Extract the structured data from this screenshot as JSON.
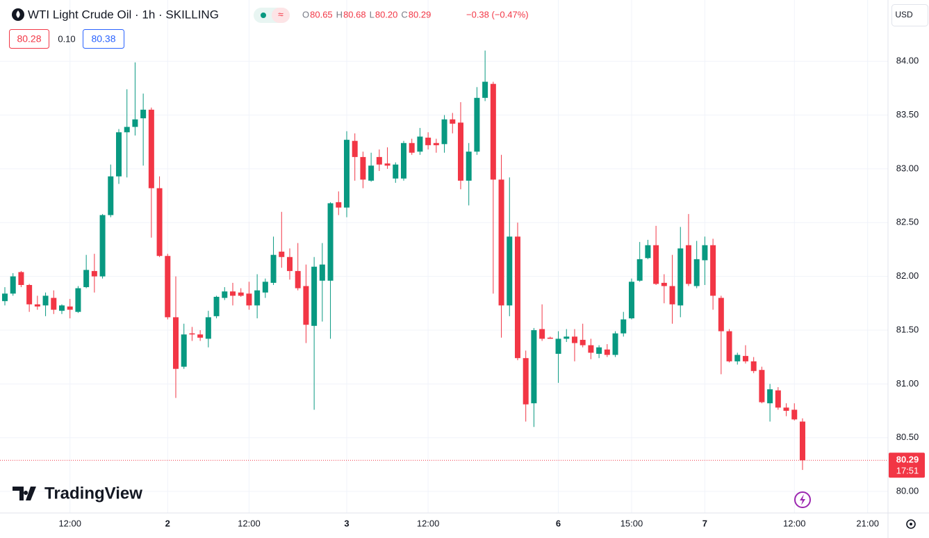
{
  "header": {
    "ohlc": [
      [
        "O",
        "80.65"
      ],
      [
        "H",
        "80.68"
      ],
      [
        "L",
        "80.20"
      ],
      [
        "C",
        "80.29"
      ]
    ],
    "change": "−0.38 (−0.47%)",
    "bid": "80.28",
    "spread": "0.10",
    "ask": "80.38",
    "currency": "USD",
    "logo": "TradingView"
  },
  "price_scale": {
    "last": "80.29",
    "countdown": "17:51"
  },
  "chart_data": {
    "type": "candlestick",
    "title": "WTI Light Crude Oil · 1h · SKILLING",
    "up_color": "#089981",
    "down_color": "#f23645",
    "grid": true,
    "categories": [
      null,
      null,
      null,
      null,
      null,
      null,
      null,
      null,
      "12:00",
      null,
      null,
      null,
      null,
      null,
      null,
      null,
      null,
      null,
      null,
      null,
      "2",
      null,
      null,
      null,
      null,
      null,
      null,
      null,
      null,
      null,
      "12:00",
      null,
      null,
      null,
      null,
      null,
      null,
      null,
      null,
      null,
      null,
      null,
      "3",
      null,
      null,
      null,
      null,
      null,
      null,
      null,
      null,
      null,
      "12:00",
      null,
      null,
      null,
      null,
      null,
      null,
      null,
      null,
      null,
      null,
      null,
      null,
      null,
      null,
      null,
      "6",
      null,
      null,
      null,
      null,
      null,
      null,
      null,
      null,
      "15:00",
      null,
      null,
      null,
      null,
      null,
      null,
      null,
      null,
      "7",
      null,
      null,
      null,
      null,
      null,
      null,
      null,
      null,
      null,
      null,
      "12:00",
      null,
      null,
      null,
      null,
      null,
      null,
      null,
      null,
      "21:00"
    ],
    "open": [
      81.77,
      81.84,
      82.04,
      81.92,
      81.74,
      81.73,
      81.8,
      81.68,
      81.72,
      81.67,
      81.9,
      82.05,
      82.0,
      82.57,
      82.93,
      83.34,
      83.39,
      83.47,
      83.55,
      82.82,
      82.19,
      81.62,
      81.16,
      81.47,
      81.46,
      81.42,
      81.63,
      81.8,
      81.86,
      81.85,
      81.84,
      81.73,
      81.85,
      81.94,
      82.23,
      82.18,
      82.05,
      81.91,
      81.54,
      81.96,
      81.96,
      82.69,
      82.64,
      83.26,
      83.11,
      82.89,
      83.11,
      83.05,
      82.91,
      82.91,
      83.24,
      83.16,
      83.29,
      83.24,
      83.23,
      83.46,
      83.43,
      82.89,
      83.16,
      83.66,
      83.79,
      82.9,
      81.73,
      82.37,
      81.24,
      80.82,
      81.51,
      81.43,
      81.28,
      81.42,
      81.44,
      81.41,
      81.36,
      81.28,
      81.32,
      81.27,
      81.47,
      81.61,
      81.96,
      82.17,
      82.29,
      81.94,
      81.91,
      81.73,
      82.29,
      81.91,
      82.15,
      82.29,
      81.8,
      81.49,
      81.21,
      81.26,
      81.21,
      81.13,
      80.82,
      80.94,
      80.78,
      80.76,
      80.65,
      null,
      null,
      null,
      null,
      null,
      null,
      null,
      null
    ],
    "high": [
      81.9,
      82.03,
      82.05,
      81.93,
      81.82,
      81.85,
      81.87,
      81.74,
      81.79,
      81.91,
      82.2,
      82.21,
      82.58,
      83.04,
      83.37,
      83.74,
      83.99,
      83.7,
      83.57,
      82.93,
      82.21,
      82.0,
      81.56,
      81.53,
      81.5,
      81.68,
      81.82,
      81.9,
      81.94,
      81.89,
      81.95,
      82.02,
      81.98,
      82.37,
      82.6,
      82.26,
      82.31,
      82.11,
      82.18,
      82.31,
      82.69,
      82.79,
      83.35,
      83.33,
      83.16,
      83.15,
      83.18,
      83.2,
      83.06,
      83.26,
      83.28,
      83.38,
      83.34,
      83.28,
      83.5,
      83.52,
      83.62,
      83.24,
      83.76,
      84.1,
      83.81,
      83.13,
      82.92,
      82.5,
      81.31,
      81.52,
      81.74,
      81.44,
      81.49,
      81.51,
      81.51,
      81.56,
      81.42,
      81.36,
      81.37,
      81.49,
      81.67,
      81.98,
      82.32,
      82.34,
      82.47,
      82.02,
      82.2,
      82.46,
      82.58,
      82.33,
      82.37,
      82.35,
      81.82,
      81.51,
      81.29,
      81.36,
      81.25,
      81.16,
      81.0,
      80.97,
      80.82,
      80.82,
      80.68,
      null,
      null,
      null,
      null,
      null,
      null,
      null,
      null
    ],
    "low": [
      81.73,
      81.82,
      81.9,
      81.67,
      81.69,
      81.63,
      81.65,
      81.65,
      81.61,
      81.66,
      81.89,
      81.85,
      81.98,
      82.55,
      82.86,
      82.92,
      83.31,
      83.03,
      82.36,
      82.18,
      81.6,
      80.87,
      81.14,
      81.4,
      81.4,
      81.34,
      81.61,
      81.78,
      81.73,
      81.81,
      81.69,
      81.61,
      81.8,
      81.92,
      82.08,
      81.97,
      81.87,
      81.38,
      80.76,
      81.58,
      81.42,
      82.57,
      82.55,
      82.89,
      82.82,
      82.88,
      82.98,
      83.0,
      82.87,
      82.89,
      83.13,
      83.13,
      83.18,
      83.15,
      83.15,
      83.33,
      82.81,
      82.66,
      83.13,
      83.63,
      81.84,
      81.43,
      81.63,
      81.22,
      80.65,
      80.6,
      81.4,
      81.42,
      81.01,
      81.39,
      81.21,
      81.34,
      81.23,
      81.24,
      81.25,
      81.25,
      81.44,
      81.6,
      81.95,
      82.16,
      81.92,
      81.75,
      81.56,
      81.62,
      81.91,
      81.89,
      81.92,
      81.69,
      81.09,
      81.2,
      81.18,
      81.19,
      81.1,
      80.82,
      80.65,
      80.76,
      80.7,
      80.66,
      80.2,
      null,
      null,
      null,
      null,
      null,
      null,
      null,
      null
    ],
    "close": [
      81.84,
      82.0,
      81.92,
      81.74,
      81.72,
      81.82,
      81.69,
      81.73,
      81.69,
      81.89,
      82.06,
      82.0,
      82.57,
      82.93,
      83.34,
      83.39,
      83.46,
      83.55,
      82.82,
      82.19,
      81.62,
      81.14,
      81.46,
      81.46,
      81.43,
      81.62,
      81.81,
      81.86,
      81.82,
      81.82,
      81.73,
      81.87,
      81.95,
      82.2,
      82.18,
      82.05,
      81.89,
      81.55,
      82.09,
      82.11,
      82.68,
      82.64,
      83.27,
      83.11,
      82.9,
      83.03,
      83.04,
      83.03,
      83.04,
      83.24,
      83.15,
      83.3,
      83.22,
      83.22,
      83.46,
      83.42,
      82.89,
      83.16,
      83.66,
      83.81,
      82.9,
      81.73,
      82.37,
      81.24,
      80.81,
      81.5,
      81.42,
      81.42,
      81.42,
      81.44,
      81.38,
      81.36,
      81.29,
      81.34,
      81.27,
      81.47,
      81.6,
      81.95,
      82.16,
      82.29,
      81.93,
      81.91,
      81.74,
      82.26,
      81.93,
      82.16,
      82.29,
      81.82,
      81.49,
      81.21,
      81.27,
      81.21,
      81.12,
      80.83,
      80.95,
      80.78,
      80.75,
      80.67,
      80.29,
      null,
      null,
      null,
      null,
      null,
      null,
      null,
      null
    ],
    "ylim": [
      79.8,
      84.57
    ],
    "yticks": [
      {
        "value": 80,
        "label": "80.00"
      },
      {
        "value": 80.5,
        "label": "80.50"
      },
      {
        "value": 81,
        "label": "81.00"
      },
      {
        "value": 81.5,
        "label": "81.50"
      },
      {
        "value": 82,
        "label": "82.00"
      },
      {
        "value": 82.5,
        "label": "82.50"
      },
      {
        "value": 83,
        "label": "83.00"
      },
      {
        "value": 83.5,
        "label": "83.50"
      },
      {
        "value": 84,
        "label": "84.00"
      }
    ]
  }
}
